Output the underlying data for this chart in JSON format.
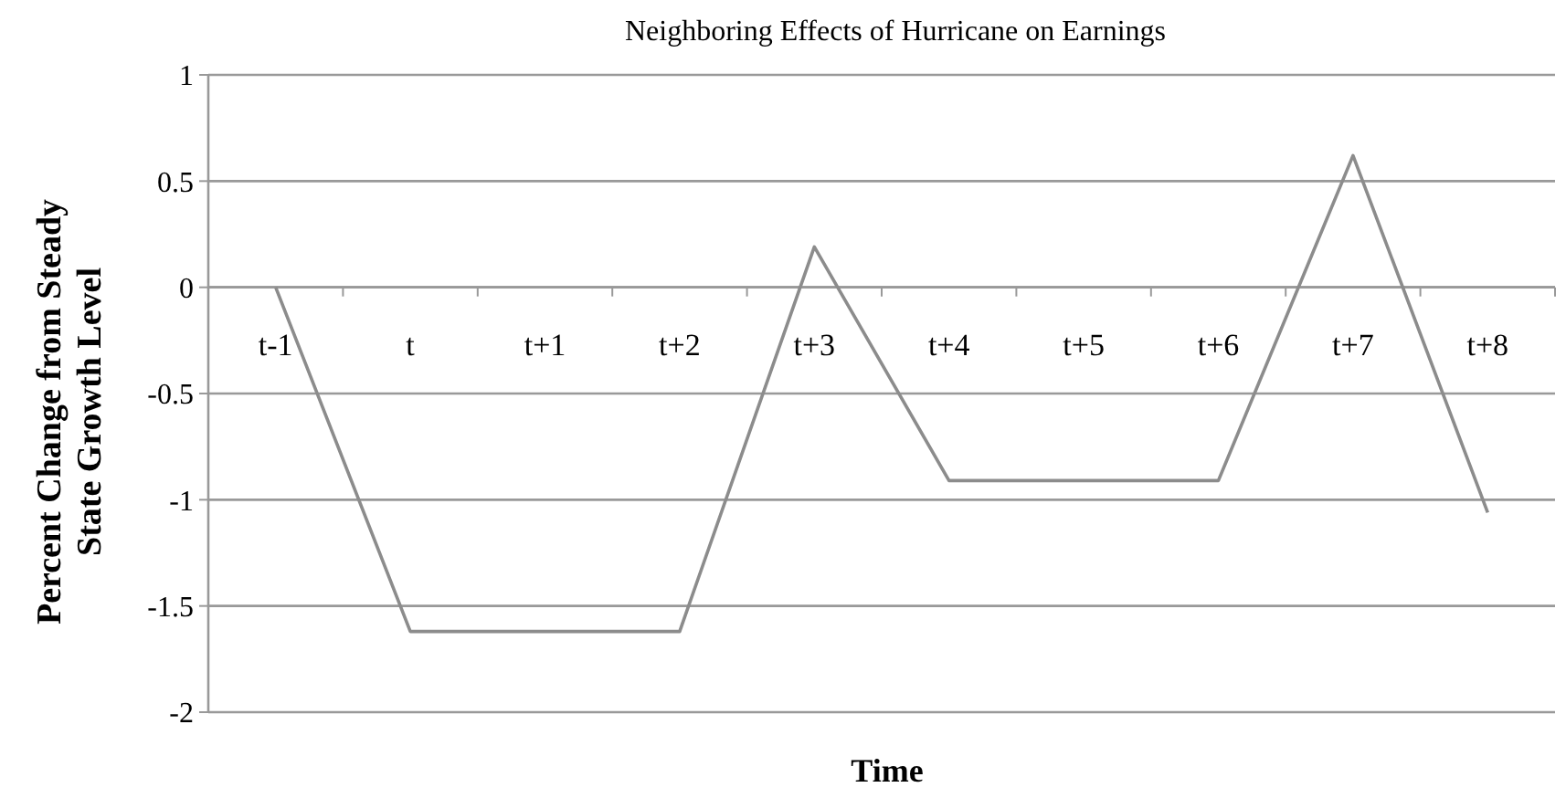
{
  "chart_data": {
    "type": "line",
    "title": "Neighboring Effects of Hurricane on Earnings",
    "xlabel": "Time",
    "ylabel": "Percent Change from Steady State Growth Level",
    "categories": [
      "t-1",
      "t",
      "t+1",
      "t+2",
      "t+3",
      "t+4",
      "t+5",
      "t+6",
      "t+7",
      "t+8"
    ],
    "series": [
      {
        "color": "#8c8c8c",
        "values": [
          0,
          -1.62,
          -1.62,
          -1.62,
          0.19,
          -0.91,
          -0.91,
          -0.91,
          0.62,
          -1.06
        ]
      }
    ],
    "ylim": [
      -2,
      1
    ],
    "yticks": [
      1,
      0.5,
      0,
      -0.5,
      -1,
      -1.5,
      -2
    ],
    "grid": "y",
    "marker": "none",
    "line_style": "solid"
  }
}
